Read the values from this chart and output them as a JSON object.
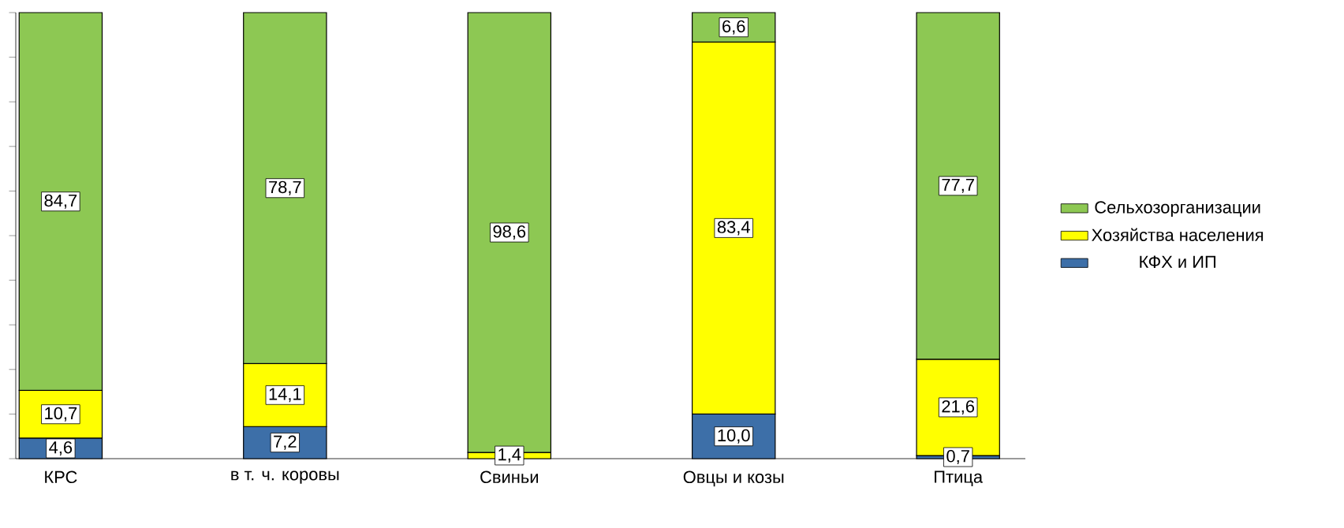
{
  "chart_data": {
    "type": "bar",
    "stacked": true,
    "categories": [
      "КРС",
      "в т. ч. коровы",
      "Свиньи",
      "Овцы и козы",
      "Птица"
    ],
    "series": [
      {
        "name": "КФХ и ИП",
        "color": "#3d6fa8",
        "values": [
          4.6,
          7.2,
          null,
          10.0,
          0.7
        ],
        "value_labels": [
          "4,6",
          "7,2",
          null,
          "10,0",
          "0,7"
        ]
      },
      {
        "name": "Хозяйства населения",
        "color": "#ffff00",
        "values": [
          10.7,
          14.1,
          1.4,
          83.4,
          21.6
        ],
        "value_labels": [
          "10,7",
          "14,1",
          "1,4",
          "83,4",
          "21,6"
        ]
      },
      {
        "name": "Сельхозорганизации",
        "color": "#8dc853",
        "values": [
          84.7,
          78.7,
          98.6,
          6.6,
          77.7
        ],
        "value_labels": [
          "84,7",
          "78,7",
          "98,6",
          "6,6",
          "77,7"
        ]
      }
    ],
    "ylim": [
      0,
      100
    ],
    "yticks": [
      {
        "value": 0,
        "label": null
      },
      {
        "value": 10,
        "label": null
      },
      {
        "value": 20,
        "label": null
      },
      {
        "value": 30,
        "label": null
      },
      {
        "value": 40,
        "label": null
      },
      {
        "value": 50,
        "label": null
      },
      {
        "value": 60,
        "label": null
      },
      {
        "value": 70,
        "label": null
      },
      {
        "value": 80,
        "label": null
      },
      {
        "value": 90,
        "label": null
      },
      {
        "value": 100,
        "label": null
      }
    ],
    "tick_labels": "x",
    "legend": "right",
    "grid": false
  }
}
